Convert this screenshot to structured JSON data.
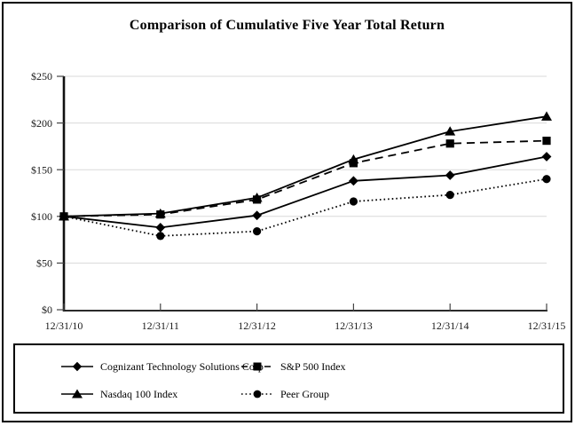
{
  "chart_data": {
    "type": "line",
    "title": "Comparison of Cumulative Five Year Total Return",
    "categories": [
      "12/31/10",
      "12/31/11",
      "12/31/12",
      "12/31/13",
      "12/31/14",
      "12/31/15"
    ],
    "y_tick_labels": [
      "$0",
      "$50",
      "$100",
      "$150",
      "$200",
      "$250"
    ],
    "y_tick_values": [
      0,
      50,
      100,
      150,
      200,
      250
    ],
    "ylim": [
      0,
      250
    ],
    "grid": "horizontal gridlines at $50 intervals",
    "legend_position": "boxed bottom, 2 columns x 2 rows",
    "series": [
      {
        "name": "Cognizant Technology Solutions Corp",
        "line": "solid",
        "marker": "diamond",
        "values": [
          100,
          88,
          101,
          138,
          144,
          164
        ]
      },
      {
        "name": "S&P 500 Index",
        "line": "dashed",
        "marker": "square",
        "values": [
          100,
          102,
          118,
          157,
          178,
          181
        ]
      },
      {
        "name": "Nasdaq 100 Index",
        "line": "solid",
        "marker": "triangle",
        "values": [
          100,
          103,
          120,
          161,
          191,
          207
        ]
      },
      {
        "name": "Peer Group",
        "line": "dotted",
        "marker": "circle",
        "values": [
          100,
          79,
          84,
          116,
          123,
          140
        ]
      }
    ],
    "colors": {
      "series": "#000000",
      "grid": "#d9d9d9",
      "axis": "#2b2b2b",
      "text": "#1a1a1a"
    }
  }
}
